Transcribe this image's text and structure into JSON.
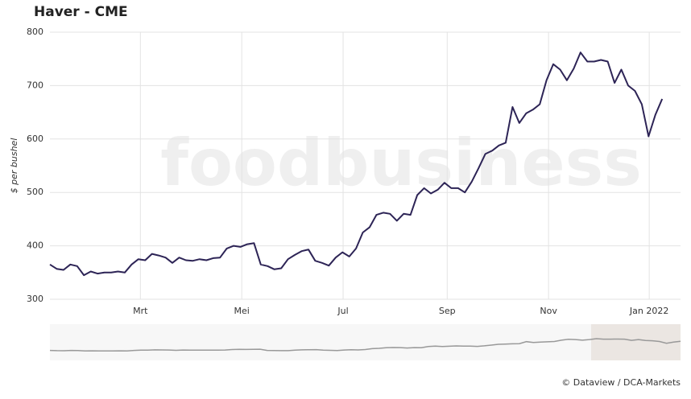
{
  "chart_data": {
    "type": "line",
    "title": "Haver - CME",
    "y_label": "$ per bushel",
    "watermark": "foodbusiness",
    "credit": "© Dataview / DCA-Markets",
    "series": [
      {
        "name": "Haver",
        "color": "#2d2456",
        "values": [
          365,
          357,
          355,
          365,
          362,
          345,
          352,
          348,
          350,
          350,
          352,
          350,
          365,
          375,
          373,
          385,
          382,
          378,
          368,
          378,
          373,
          372,
          375,
          373,
          377,
          378,
          395,
          400,
          398,
          403,
          405,
          365,
          362,
          356,
          358,
          375,
          383,
          390,
          393,
          372,
          368,
          363,
          378,
          388,
          380,
          395,
          425,
          435,
          458,
          462,
          460,
          447,
          460,
          458,
          495,
          508,
          498,
          505,
          518,
          508,
          508,
          500,
          520,
          545,
          572,
          578,
          588,
          593,
          660,
          630,
          648,
          655,
          665,
          710,
          740,
          730,
          710,
          732,
          762,
          745,
          745,
          748,
          745,
          705,
          730,
          700,
          690,
          665,
          605,
          645,
          675
        ]
      }
    ],
    "xlim": [
      0,
      92.7
    ],
    "xticks": [
      {
        "value": 13.3,
        "label": "Mrt"
      },
      {
        "value": 28.2,
        "label": "Mei"
      },
      {
        "value": 43.1,
        "label": "Jul"
      },
      {
        "value": 58.4,
        "label": "Sep"
      },
      {
        "value": 73.3,
        "label": "Nov"
      },
      {
        "value": 88.1,
        "label": "Jan 2022"
      }
    ],
    "ylim": [
      300,
      800
    ],
    "yticks": [
      300,
      400,
      500,
      600,
      700,
      800
    ],
    "grid": true
  }
}
